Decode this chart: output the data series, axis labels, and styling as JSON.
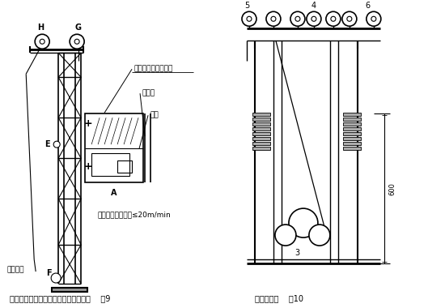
{
  "bg_color": "#ffffff",
  "line_color": "#000000",
  "caption_left": "吊装标准节、附墙架、天轮架等示意图    图9",
  "caption_right": "安装钢丝绳    图10",
  "label_top_cage": "吊笼顶部安全钩位置",
  "label_rear_col": "后立柱",
  "label_cage": "吊笼",
  "label_note": "注：起吊速度必须≤20m/min",
  "label_winch": "至卷扬机",
  "label_H": "H",
  "label_G": "G",
  "label_E": "E",
  "label_A": "A",
  "label_F": "F",
  "label_3": "3",
  "label_4": "4",
  "label_5": "5",
  "label_6": "6",
  "label_600": "600"
}
